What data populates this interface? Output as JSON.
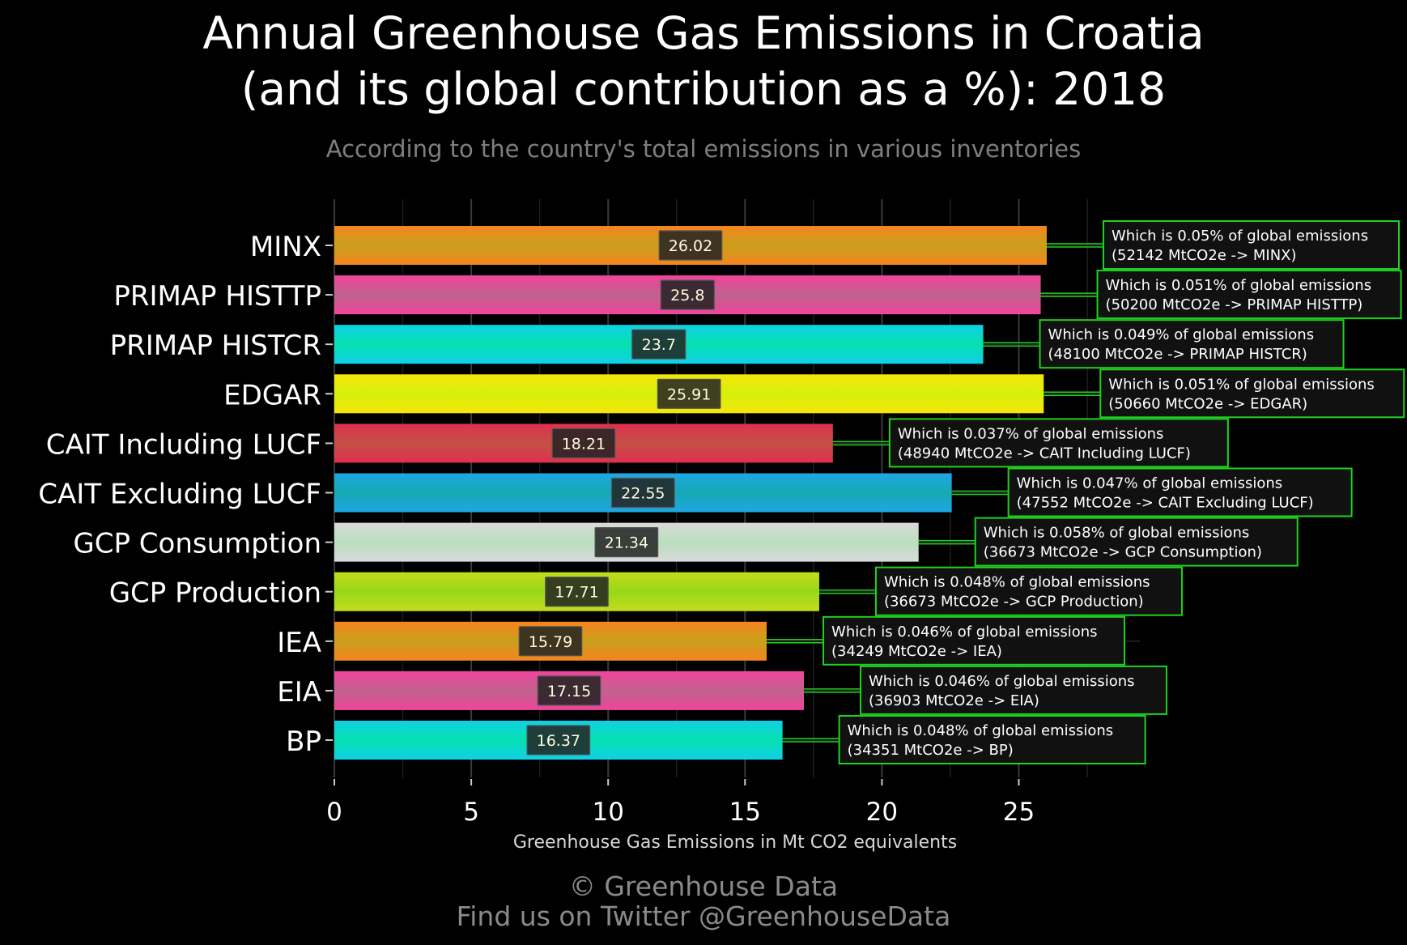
{
  "title_lines": [
    "Annual Greenhouse Gas Emissions in Croatia",
    "(and its global contribution as a %): 2018"
  ],
  "subtitle": "According to the country's total emissions in various inventories",
  "caption_lines": [
    "© Greenhouse Data",
    "Find us on Twitter @GreenhouseData"
  ],
  "colors": {
    "background": "#000000",
    "annotation_border": "#1fd21f",
    "annotation_fill": "#111111",
    "value_label_fill": "#222222",
    "grid": "#333333"
  },
  "chart_data": {
    "type": "bar",
    "orientation": "horizontal",
    "xlabel": "Greenhouse Gas Emissions in Mt CO2 equivalents",
    "ylabel": "",
    "xlim": [
      0,
      29.4
    ],
    "x_ticks": [
      0,
      5,
      10,
      15,
      20,
      25
    ],
    "grid": true,
    "categories": [
      "MINX",
      "PRIMAP HISTTP",
      "PRIMAP HISTCR",
      "EDGAR",
      "CAIT Including LUCF",
      "CAIT Excluding LUCF",
      "GCP Consumption",
      "GCP Production",
      "IEA",
      "EIA",
      "BP"
    ],
    "values": [
      26.02,
      25.8,
      23.7,
      25.91,
      18.21,
      22.55,
      21.34,
      17.71,
      15.79,
      17.15,
      16.37
    ],
    "value_labels": [
      "26.02",
      "25.8",
      "23.7",
      "25.91",
      "18.21",
      "22.55",
      "21.34",
      "17.71",
      "15.79",
      "17.15",
      "16.37"
    ],
    "bar_colors": [
      [
        "#f5841f",
        "#c9a01c"
      ],
      [
        "#f0449c",
        "#c0628d"
      ],
      [
        "#0fd0e6",
        "#06e0b0"
      ],
      [
        "#f5e60a",
        "#d6f00a"
      ],
      [
        "#e0304e",
        "#c45045"
      ],
      [
        "#1ea7e6",
        "#16a8b2"
      ],
      [
        "#dadada",
        "#b9dfbd"
      ],
      [
        "#c3dc1a",
        "#98d81a"
      ],
      [
        "#f5841f",
        "#c9a01c"
      ],
      [
        "#f0449c",
        "#c0628d"
      ],
      [
        "#0fd0e6",
        "#06e0b0"
      ]
    ],
    "annotations": [
      [
        "Which is 0.05% of global emissions",
        "(52142 MtCO2e -> MINX)"
      ],
      [
        "Which is 0.051% of global emissions",
        "(50200 MtCO2e -> PRIMAP HISTTP)"
      ],
      [
        "Which is 0.049% of global emissions",
        "(48100 MtCO2e -> PRIMAP HISTCR)"
      ],
      [
        "Which is 0.051% of global emissions",
        "(50660 MtCO2e -> EDGAR)"
      ],
      [
        "Which is 0.037% of global emissions",
        "(48940 MtCO2e -> CAIT Including LUCF)"
      ],
      [
        "Which is 0.047% of global emissions",
        "(47552 MtCO2e -> CAIT Excluding LUCF)"
      ],
      [
        "Which is 0.058% of global emissions",
        "(36673 MtCO2e -> GCP Consumption)"
      ],
      [
        "Which is 0.048% of global emissions",
        "(36673 MtCO2e -> GCP Production)"
      ],
      [
        "Which is 0.046% of global emissions",
        "(34249 MtCO2e -> IEA)"
      ],
      [
        "Which is 0.046% of global emissions",
        "(36903 MtCO2e -> EIA)"
      ],
      [
        "Which is 0.048% of global emissions",
        "(34351 MtCO2e -> BP)"
      ]
    ]
  }
}
